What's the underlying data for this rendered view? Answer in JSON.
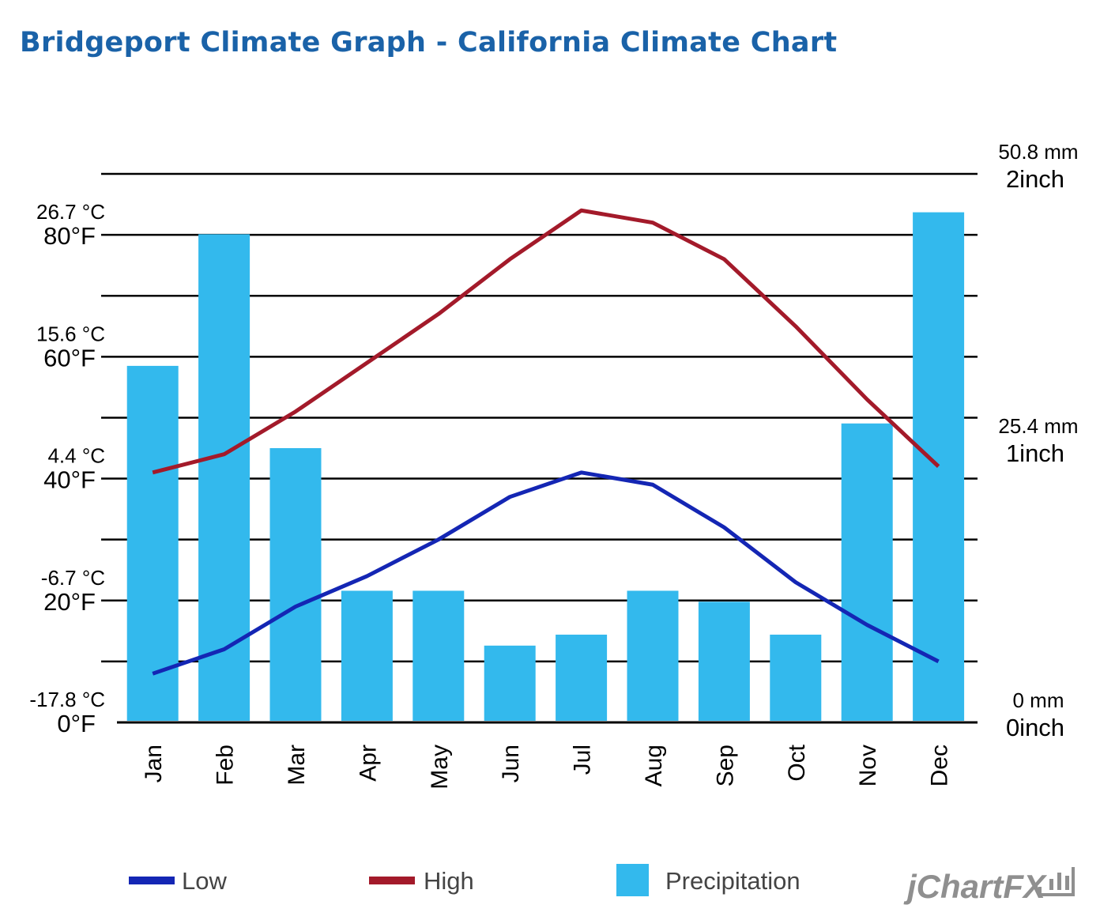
{
  "title": "Bridgeport Climate Graph - California Climate Chart",
  "chart_data": {
    "type": "bar+line",
    "categories": [
      "Jan",
      "Feb",
      "Mar",
      "Apr",
      "May",
      "Jun",
      "Jul",
      "Aug",
      "Sep",
      "Oct",
      "Nov",
      "Dec"
    ],
    "series": [
      {
        "name": "Low",
        "type": "line",
        "axis": "temperature",
        "color": "#1426b4",
        "values": [
          8,
          12,
          19,
          24,
          30,
          37,
          41,
          39,
          32,
          23,
          16,
          10
        ]
      },
      {
        "name": "High",
        "type": "line",
        "axis": "temperature",
        "color": "#a31a2a",
        "values": [
          41,
          44,
          51,
          59,
          67,
          76,
          84,
          82,
          76,
          65,
          53,
          42
        ]
      },
      {
        "name": "Precipitation",
        "type": "bar",
        "axis": "precipitation",
        "unit": "inch",
        "color": "#33b9ed",
        "values": [
          1.3,
          1.78,
          1.0,
          0.48,
          0.48,
          0.28,
          0.32,
          0.48,
          0.44,
          0.32,
          1.09,
          1.86
        ]
      }
    ],
    "y_left": {
      "unit": "°F",
      "range": [
        0,
        90
      ],
      "ticks": [
        {
          "value": 0,
          "f_label": "0°F",
          "c_label": "-17.8 °C"
        },
        {
          "value": 20,
          "f_label": "20°F",
          "c_label": "-6.7 °C"
        },
        {
          "value": 40,
          "f_label": "40°F",
          "c_label": "4.4 °C"
        },
        {
          "value": 60,
          "f_label": "60°F",
          "c_label": "15.6 °C"
        },
        {
          "value": 80,
          "f_label": "80°F",
          "c_label": "26.7 °C"
        }
      ]
    },
    "y_right": {
      "unit": "inch",
      "range": [
        0,
        2
      ],
      "ticks": [
        {
          "value": 0,
          "inch_label": "0inch",
          "mm_label": "0 mm"
        },
        {
          "value": 1,
          "inch_label": "1inch",
          "mm_label": "25.4 mm"
        },
        {
          "value": 2,
          "inch_label": "2inch",
          "mm_label": "50.8 mm"
        }
      ]
    },
    "gridlines": [
      0,
      10,
      20,
      30,
      40,
      50,
      60,
      70,
      80,
      90
    ],
    "grid": true,
    "legend": {
      "position": "bottom",
      "entries": [
        "Low",
        "High",
        "Precipitation"
      ]
    }
  },
  "brand": {
    "text": "jChartFX"
  }
}
